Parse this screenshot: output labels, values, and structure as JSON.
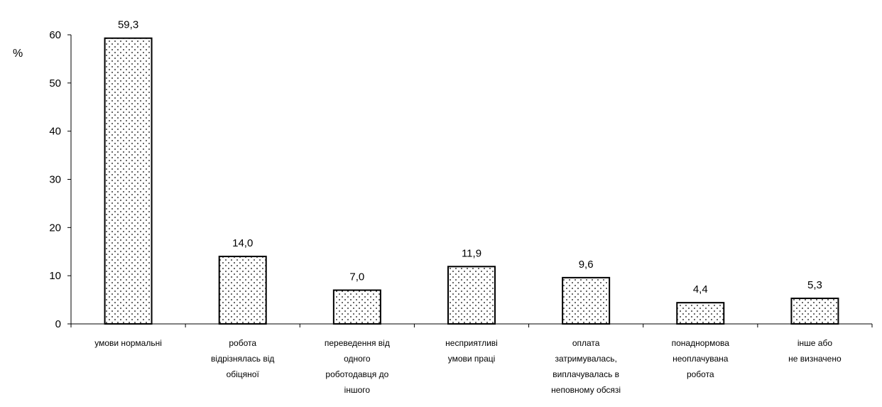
{
  "chart_data": {
    "type": "bar",
    "title": "",
    "xlabel": "",
    "ylabel": "%",
    "ylim": [
      0,
      60
    ],
    "yticks": [
      0,
      10,
      20,
      30,
      40,
      50,
      60
    ],
    "grid": false,
    "legend": "none",
    "categories": [
      [
        "умови нормальні"
      ],
      [
        "робота",
        "відрізнялась від",
        "обіцяної"
      ],
      [
        "переведення від",
        "одного",
        "роботодавця до",
        "іншого"
      ],
      [
        "несприятливі",
        "умови праці"
      ],
      [
        "оплата",
        "затримувалась,",
        "виплачувалась в",
        "неповному обсязі"
      ],
      [
        "понаднормова",
        "неоплачувана",
        "робота"
      ],
      [
        "інше або",
        "не визначено"
      ]
    ],
    "values": [
      59.3,
      14.0,
      7.0,
      11.9,
      9.6,
      4.4,
      5.3
    ],
    "value_labels": [
      "59,3",
      "14,0",
      "7,0",
      "11,9",
      "9,6",
      "4,4",
      "5,3"
    ],
    "colors": {
      "bar_fill": "#ffffff",
      "bar_stroke": "#000000",
      "pattern_dot": "#000000",
      "axis": "#000000"
    }
  }
}
